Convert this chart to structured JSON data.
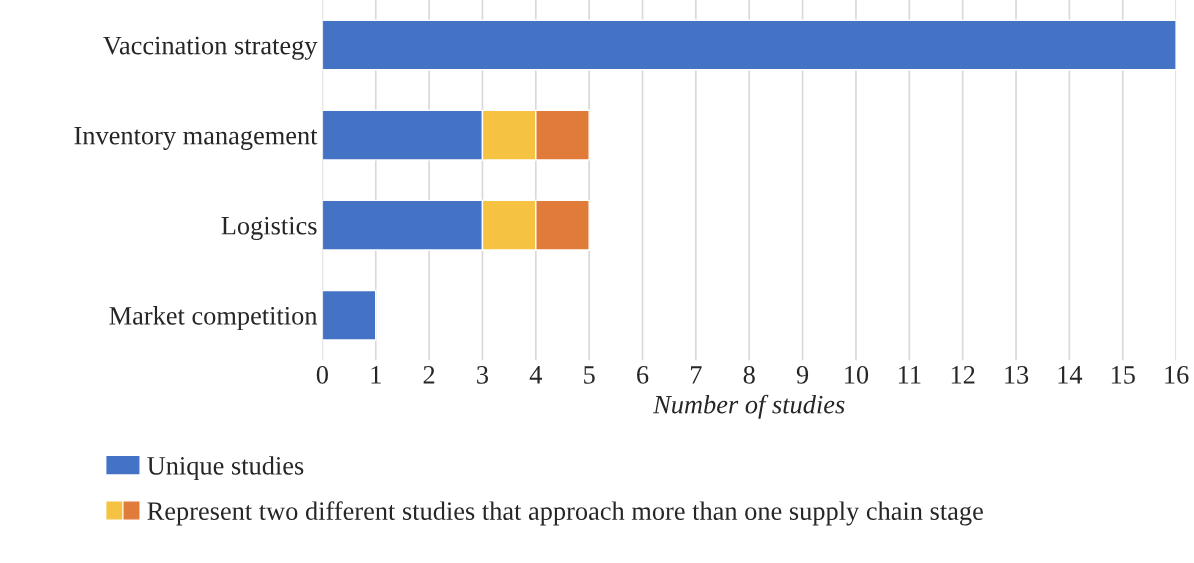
{
  "chart_data": {
    "type": "bar",
    "orientation": "horizontal",
    "stacked": true,
    "categories": [
      "Vaccination strategy",
      "Inventory management",
      "Logistics",
      "Market competition"
    ],
    "series": [
      {
        "name": "Unique studies",
        "color": "#4472c4",
        "values": [
          16,
          3,
          3,
          1
        ]
      },
      {
        "color": "#f5c242",
        "values": [
          null,
          1,
          1,
          null
        ]
      },
      {
        "name": "Represent two different studies that approach more than one supply chain stage",
        "color": "#e07b39",
        "values": [
          null,
          1,
          1,
          null
        ]
      }
    ],
    "xlabel": "Number of studies",
    "xlim": [
      0,
      16
    ],
    "xticks": [
      0,
      1,
      2,
      3,
      4,
      5,
      6,
      7,
      8,
      9,
      10,
      11,
      12,
      13,
      14,
      15,
      16
    ],
    "grid": "x",
    "legend": "bottom left"
  }
}
